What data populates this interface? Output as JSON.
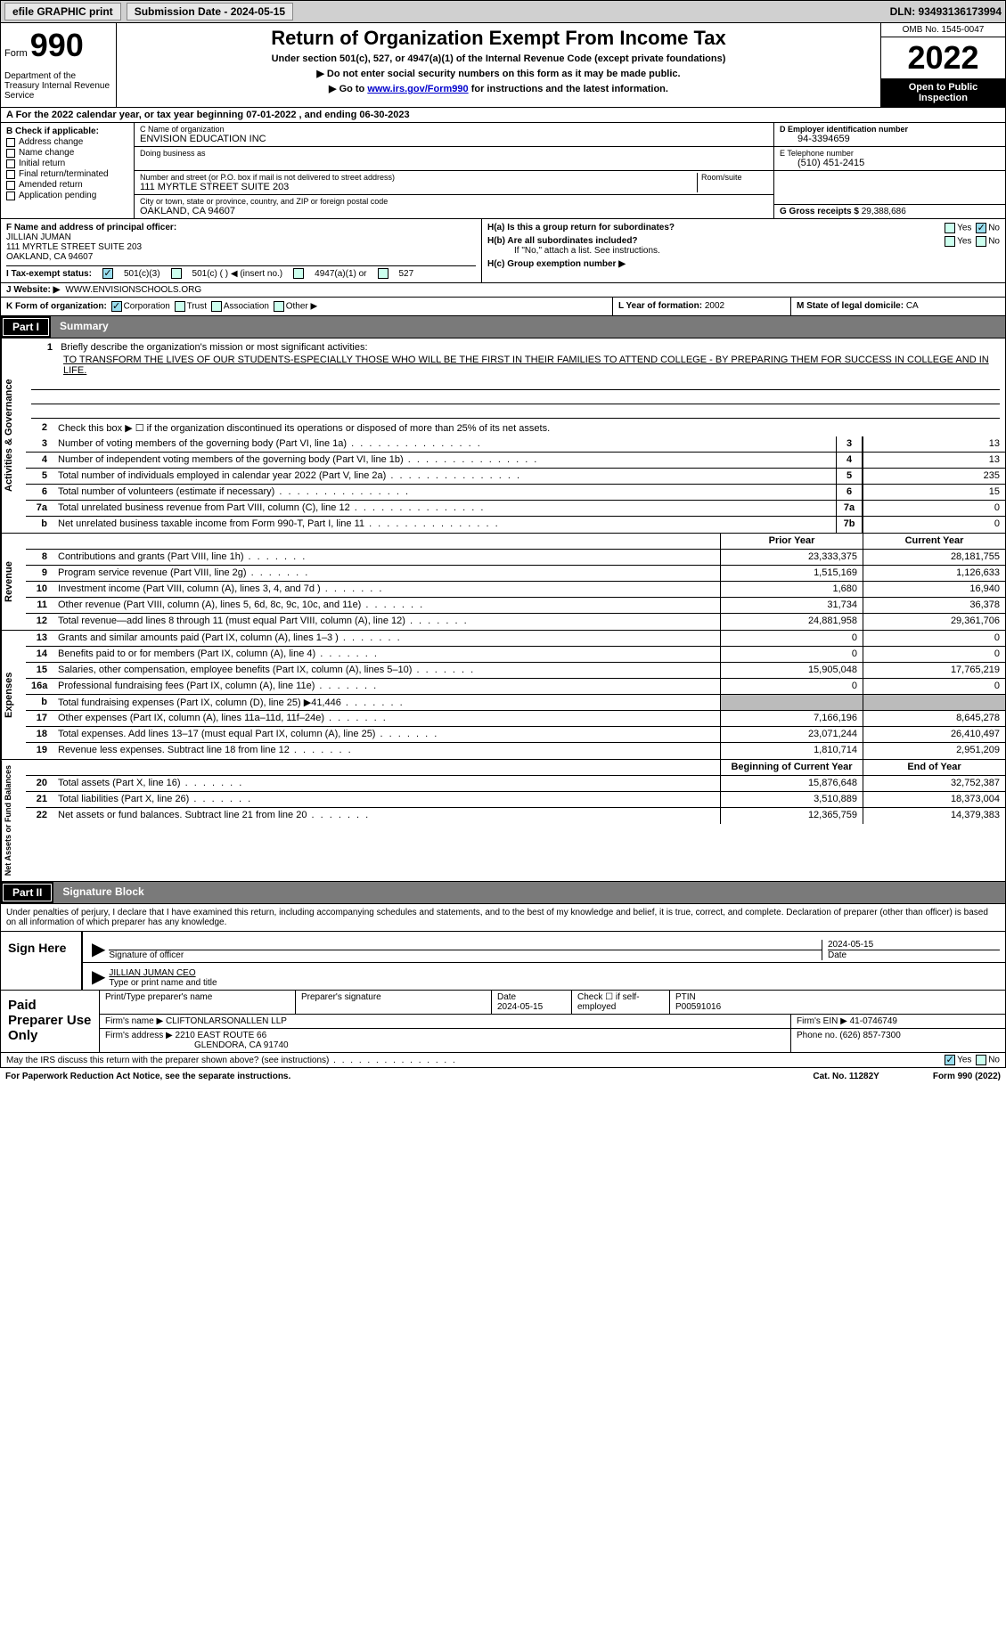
{
  "topbar": {
    "efile_label": "efile GRAPHIC print",
    "submission_date_label": "Submission Date - 2024-05-15",
    "dln_label": "DLN: 93493136173994"
  },
  "header": {
    "form_label": "Form",
    "form_number": "990",
    "title": "Return of Organization Exempt From Income Tax",
    "subtitle1": "Under section 501(c), 527, or 4947(a)(1) of the Internal Revenue Code (except private foundations)",
    "subtitle2": "▶ Do not enter social security numbers on this form as it may be made public.",
    "subtitle3_prefix": "▶ Go to ",
    "subtitle3_link": "www.irs.gov/Form990",
    "subtitle3_suffix": " for instructions and the latest information.",
    "dept": "Department of the Treasury\nInternal Revenue Service",
    "omb": "OMB No. 1545-0047",
    "year": "2022",
    "inspect": "Open to Public Inspection"
  },
  "row_a": "A For the 2022 calendar year, or tax year beginning 07-01-2022    , and ending 06-30-2023",
  "section_b": {
    "label": "B Check if applicable:",
    "items": [
      "Address change",
      "Name change",
      "Initial return",
      "Final return/terminated",
      "Amended return",
      "Application pending"
    ]
  },
  "section_c": {
    "name_lbl": "C Name of organization",
    "name_val": "ENVISION EDUCATION INC",
    "dba_lbl": "Doing business as",
    "addr_lbl": "Number and street (or P.O. box if mail is not delivered to street address)",
    "room_lbl": "Room/suite",
    "addr_val": "111 MYRTLE STREET SUITE 203",
    "city_lbl": "City or town, state or province, country, and ZIP or foreign postal code",
    "city_val": "OAKLAND, CA  94607"
  },
  "section_d": {
    "ein_lbl": "D Employer identification number",
    "ein_val": "94-3394659",
    "tel_lbl": "E Telephone number",
    "tel_val": "(510) 451-2415",
    "gross_lbl": "G Gross receipts $ ",
    "gross_val": "29,388,686"
  },
  "section_f": {
    "lbl": "F  Name and address of principal officer:",
    "name": "JILLIAN JUMAN",
    "addr1": "111 MYRTLE STREET SUITE 203",
    "addr2": "OAKLAND, CA  94607"
  },
  "section_h": {
    "ha": "H(a)  Is this a group return for subordinates?",
    "hb": "H(b)  Are all subordinates included?",
    "hb_note": "If \"No,\" attach a list. See instructions.",
    "hc": "H(c)  Group exemption number ▶",
    "yes": "Yes",
    "no": "No"
  },
  "row_i": {
    "lbl": "I     Tax-exempt status:",
    "o1": "501(c)(3)",
    "o2": "501(c) (  ) ◀ (insert no.)",
    "o3": "4947(a)(1) or",
    "o4": "527"
  },
  "row_j": {
    "lbl": "J    Website: ▶",
    "val": "WWW.ENVISIONSCHOOLS.ORG"
  },
  "row_k": {
    "lbl": "K Form of organization:",
    "o1": "Corporation",
    "o2": "Trust",
    "o3": "Association",
    "o4": "Other ▶"
  },
  "row_l": {
    "lbl": "L Year of formation: ",
    "val": "2002"
  },
  "row_m": {
    "lbl": "M State of legal domicile: ",
    "val": "CA"
  },
  "part1": {
    "tag": "Part I",
    "title": "Summary"
  },
  "summary": {
    "activities_label": "Activities & Governance",
    "revenue_label": "Revenue",
    "expenses_label": "Expenses",
    "netassets_label": "Net Assets or Fund Balances",
    "line1_lbl": "Briefly describe the organization's mission or most significant activities:",
    "line1_val": "TO TRANSFORM THE LIVES OF OUR STUDENTS-ESPECIALLY THOSE WHO WILL BE THE FIRST IN THEIR FAMILIES TO ATTEND COLLEGE - BY PREPARING THEM FOR SUCCESS IN COLLEGE AND IN LIFE.",
    "line2": "Check this box ▶ ☐  if the organization discontinued its operations or disposed of more than 25% of its net assets.",
    "prior_year_hdr": "Prior Year",
    "current_year_hdr": "Current Year",
    "beg_year_hdr": "Beginning of Current Year",
    "end_year_hdr": "End of Year",
    "lines_a": [
      {
        "n": "3",
        "t": "Number of voting members of the governing body (Part VI, line 1a)",
        "box": "3",
        "v": "13"
      },
      {
        "n": "4",
        "t": "Number of independent voting members of the governing body (Part VI, line 1b)",
        "box": "4",
        "v": "13"
      },
      {
        "n": "5",
        "t": "Total number of individuals employed in calendar year 2022 (Part V, line 2a)",
        "box": "5",
        "v": "235"
      },
      {
        "n": "6",
        "t": "Total number of volunteers (estimate if necessary)",
        "box": "6",
        "v": "15"
      },
      {
        "n": "7a",
        "t": "Total unrelated business revenue from Part VIII, column (C), line 12",
        "box": "7a",
        "v": "0"
      },
      {
        "n": "b",
        "t": "Net unrelated business taxable income from Form 990-T, Part I, line 11",
        "box": "7b",
        "v": "0"
      }
    ],
    "lines_rev": [
      {
        "n": "8",
        "t": "Contributions and grants (Part VIII, line 1h)",
        "p": "23,333,375",
        "c": "28,181,755"
      },
      {
        "n": "9",
        "t": "Program service revenue (Part VIII, line 2g)",
        "p": "1,515,169",
        "c": "1,126,633"
      },
      {
        "n": "10",
        "t": "Investment income (Part VIII, column (A), lines 3, 4, and 7d )",
        "p": "1,680",
        "c": "16,940"
      },
      {
        "n": "11",
        "t": "Other revenue (Part VIII, column (A), lines 5, 6d, 8c, 9c, 10c, and 11e)",
        "p": "31,734",
        "c": "36,378"
      },
      {
        "n": "12",
        "t": "Total revenue—add lines 8 through 11 (must equal Part VIII, column (A), line 12)",
        "p": "24,881,958",
        "c": "29,361,706"
      }
    ],
    "lines_exp": [
      {
        "n": "13",
        "t": "Grants and similar amounts paid (Part IX, column (A), lines 1–3 )",
        "p": "0",
        "c": "0"
      },
      {
        "n": "14",
        "t": "Benefits paid to or for members (Part IX, column (A), line 4)",
        "p": "0",
        "c": "0"
      },
      {
        "n": "15",
        "t": "Salaries, other compensation, employee benefits (Part IX, column (A), lines 5–10)",
        "p": "15,905,048",
        "c": "17,765,219"
      },
      {
        "n": "16a",
        "t": "Professional fundraising fees (Part IX, column (A), line 11e)",
        "p": "0",
        "c": "0"
      },
      {
        "n": "b",
        "t": "Total fundraising expenses (Part IX, column (D), line 25) ▶41,446",
        "p": "gray",
        "c": "gray"
      },
      {
        "n": "17",
        "t": "Other expenses (Part IX, column (A), lines 11a–11d, 11f–24e)",
        "p": "7,166,196",
        "c": "8,645,278"
      },
      {
        "n": "18",
        "t": "Total expenses. Add lines 13–17 (must equal Part IX, column (A), line 25)",
        "p": "23,071,244",
        "c": "26,410,497"
      },
      {
        "n": "19",
        "t": "Revenue less expenses. Subtract line 18 from line 12",
        "p": "1,810,714",
        "c": "2,951,209"
      }
    ],
    "lines_net": [
      {
        "n": "20",
        "t": "Total assets (Part X, line 16)",
        "p": "15,876,648",
        "c": "32,752,387"
      },
      {
        "n": "21",
        "t": "Total liabilities (Part X, line 26)",
        "p": "3,510,889",
        "c": "18,373,004"
      },
      {
        "n": "22",
        "t": "Net assets or fund balances. Subtract line 21 from line 20",
        "p": "12,365,759",
        "c": "14,379,383"
      }
    ]
  },
  "part2": {
    "tag": "Part II",
    "title": "Signature Block"
  },
  "penalty": "Under penalties of perjury, I declare that I have examined this return, including accompanying schedules and statements, and to the best of my knowledge and belief, it is true, correct, and complete. Declaration of preparer (other than officer) is based on all information of which preparer has any knowledge.",
  "sign": {
    "here_lbl": "Sign Here",
    "sig_lbl": "Signature of officer",
    "date_lbl": "Date",
    "date_val": "2024-05-15",
    "name_val": "JILLIAN JUMAN  CEO",
    "name_lbl": "Type or print name and title"
  },
  "paid": {
    "lbl": "Paid Preparer Use Only",
    "r1_c1_lbl": "Print/Type preparer's name",
    "r1_c2_lbl": "Preparer's signature",
    "r1_c3_lbl": "Date",
    "r1_c3_val": "2024-05-15",
    "r1_c4_lbl": "Check ☐ if self-employed",
    "r1_c5_lbl": "PTIN",
    "r1_c5_val": "P00591016",
    "r2_lbl": "Firm's name      ▶",
    "r2_val": "CLIFTONLARSONALLEN LLP",
    "r2b_lbl": "Firm's EIN ▶ ",
    "r2b_val": "41-0746749",
    "r3_lbl": "Firm's address ▶",
    "r3_val1": "2210 EAST ROUTE 66",
    "r3_val2": "GLENDORA, CA  91740",
    "r3b_lbl": "Phone no. ",
    "r3b_val": "(626) 857-7300"
  },
  "discuss": {
    "txt": "May the IRS discuss this return with the preparer shown above? (see instructions)",
    "yes": "Yes",
    "no": "No"
  },
  "footer": {
    "left": "For Paperwork Reduction Act Notice, see the separate instructions.",
    "mid": "Cat. No. 11282Y",
    "right": "Form 990 (2022)"
  }
}
